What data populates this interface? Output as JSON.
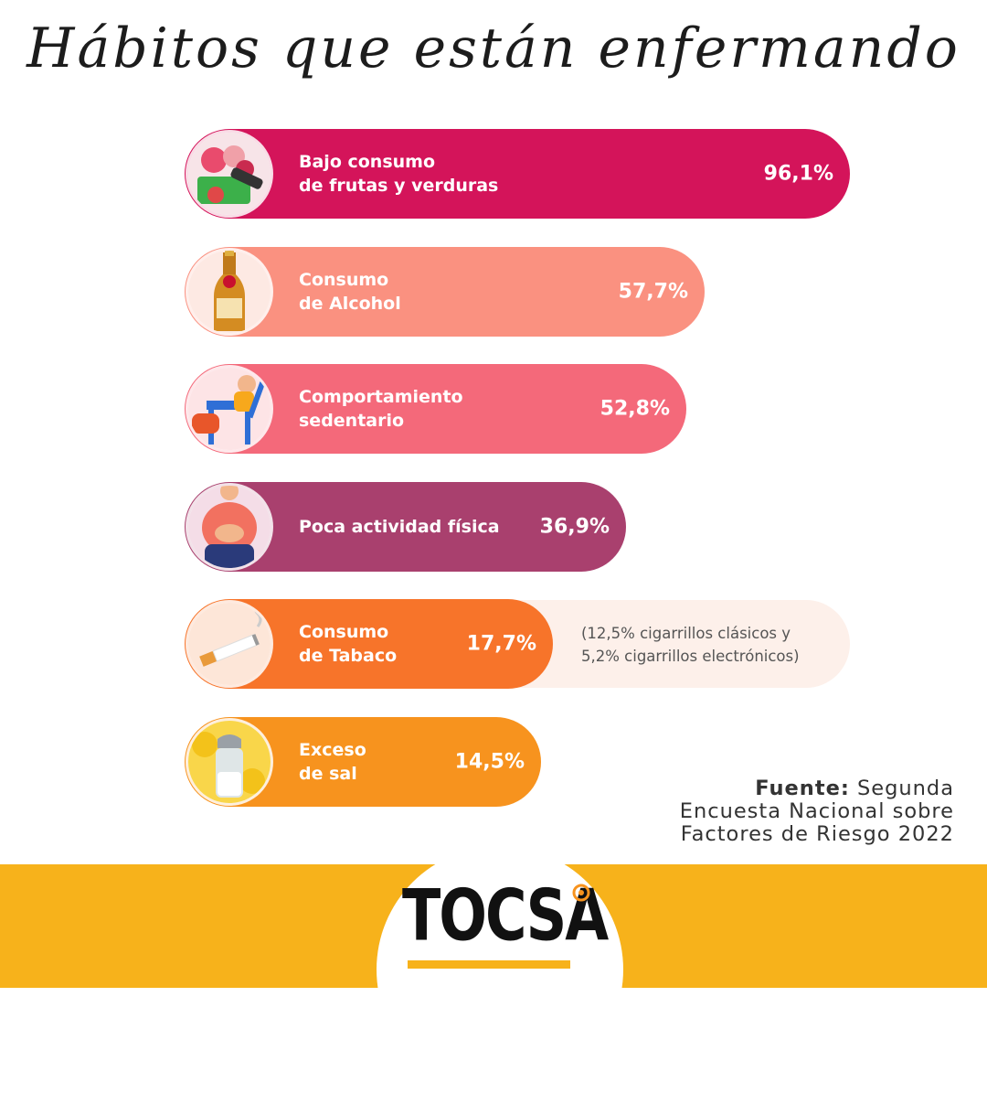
{
  "title": "Hábitos que están enfermando",
  "chart_data": {
    "type": "bar",
    "orientation": "horizontal",
    "title": "Hábitos que están enfermando",
    "categories": [
      "Bajo consumo de frutas y verduras",
      "Consumo de Alcohol",
      "Comportamiento sedentario",
      "Poca actividad física",
      "Consumo de Tabaco",
      "Exceso de sal"
    ],
    "values": [
      96.1,
      57.7,
      52.8,
      36.9,
      17.7,
      14.5
    ],
    "unit": "%",
    "bars": [
      {
        "label": "Bajo consumo\nde frutas y verduras",
        "value_label": "96,1%",
        "value": 96.1,
        "color": "#d4145a",
        "icon": "vegetables-icon"
      },
      {
        "label": "Consumo\nde Alcohol",
        "value_label": "57,7%",
        "value": 57.7,
        "color": "#fa9180",
        "icon": "beer-bottle-icon"
      },
      {
        "label": "Comportamiento\nsedentario",
        "value_label": "52,8%",
        "value": 52.8,
        "color": "#f4697a",
        "icon": "sitting-person-icon"
      },
      {
        "label": "Poca actividad física",
        "value_label": "36,9%",
        "value": 36.9,
        "color": "#a9406e",
        "icon": "overweight-person-icon"
      },
      {
        "label": "Consumo\nde Tabaco",
        "value_label": "17,7%",
        "value": 17.7,
        "color": "#f7742a",
        "icon": "cigarette-icon"
      },
      {
        "label": "Exceso\nde sal",
        "value_label": "14,5%",
        "value": 14.5,
        "color": "#f7931e",
        "icon": "salt-shaker-icon"
      }
    ],
    "annotations": [
      "(12,5% cigarrillos clásicos y\n5,2% cigarrillos electrónicos)"
    ]
  },
  "tobacco_note": "(12,5% cigarrillos clásicos y\n5,2% cigarrillos electrónicos)",
  "source": {
    "label": "Fuente:",
    "text": "Segunda\nEncuesta Nacional sobre\nFactores de Riesgo 2022"
  },
  "logo": {
    "text": "TOCSA"
  },
  "colors": {
    "footer": "#f7b21b",
    "title": "#1c1c1c"
  }
}
